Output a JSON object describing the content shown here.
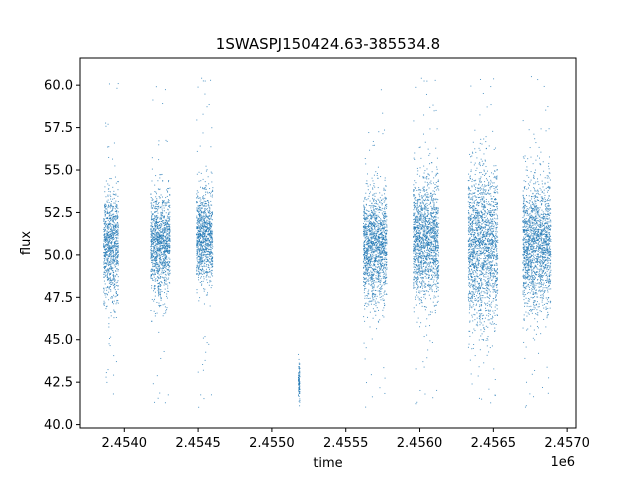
{
  "chart_data": {
    "type": "scatter",
    "title": "1SWASPJ150424.63-385534.8",
    "xlabel": "time",
    "ylabel": "flux",
    "x_offset_label": "1e6",
    "xlim": [
      2453700,
      2457060
    ],
    "ylim": [
      39.8,
      61.6
    ],
    "x_ticks": [
      2454000,
      2454500,
      2455000,
      2455500,
      2456000,
      2456500,
      2457000
    ],
    "x_tick_labels": [
      "2.4540",
      "2.4545",
      "2.4550",
      "2.4555",
      "2.4560",
      "2.4565",
      "2.4570"
    ],
    "y_ticks": [
      40.0,
      42.5,
      45.0,
      47.5,
      50.0,
      52.5,
      55.0,
      57.5,
      60.0
    ],
    "y_tick_labels": [
      "40.0",
      "42.5",
      "45.0",
      "47.5",
      "50.0",
      "52.5",
      "55.0",
      "57.5",
      "60.0"
    ],
    "marker_color": "#1f77b4",
    "grid": false,
    "series": [
      {
        "clusters": [
          {
            "x_start": 2453860,
            "x_end": 2453960,
            "center": 50.5,
            "spread": 1.6,
            "outlier_low": 41.0,
            "outlier_high": 60.5
          },
          {
            "x_start": 2454180,
            "x_end": 2454310,
            "center": 50.6,
            "spread": 1.5,
            "outlier_low": 40.9,
            "outlier_high": 60.4
          },
          {
            "x_start": 2454490,
            "x_end": 2454600,
            "center": 51.0,
            "spread": 1.4,
            "outlier_low": 40.9,
            "outlier_high": 60.5
          },
          {
            "x_start": 2455180,
            "x_end": 2455190,
            "center": 42.5,
            "spread": 0.6,
            "outlier_low": 42.0,
            "outlier_high": 43.7
          },
          {
            "x_start": 2455620,
            "x_end": 2455780,
            "center": 50.5,
            "spread": 1.6,
            "outlier_low": 41.0,
            "outlier_high": 60.4
          },
          {
            "x_start": 2455960,
            "x_end": 2456130,
            "center": 50.8,
            "spread": 1.8,
            "outlier_low": 41.2,
            "outlier_high": 60.5
          },
          {
            "x_start": 2456330,
            "x_end": 2456530,
            "center": 50.5,
            "spread": 2.3,
            "outlier_low": 40.9,
            "outlier_high": 60.6
          },
          {
            "x_start": 2456700,
            "x_end": 2456890,
            "center": 50.6,
            "spread": 1.9,
            "outlier_low": 41.0,
            "outlier_high": 60.6
          }
        ]
      }
    ]
  }
}
